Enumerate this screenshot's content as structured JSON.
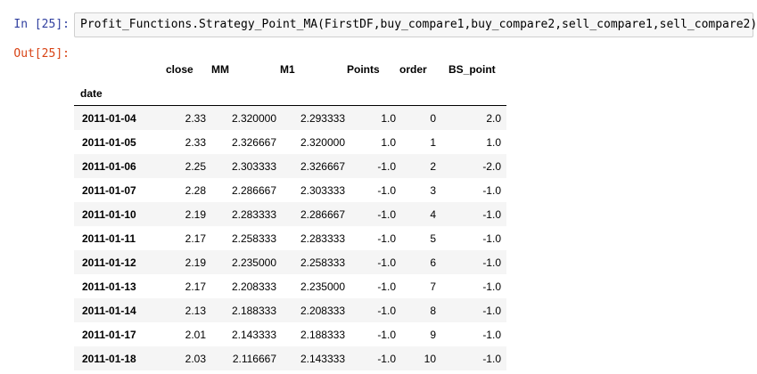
{
  "notebook": {
    "in_prompt": "In [25]:",
    "out_prompt": "Out[25]:",
    "code": "Profit_Functions.Strategy_Point_MA(FirstDF,buy_compare1,buy_compare2,sell_compare1,sell_compare2)"
  },
  "table": {
    "columns": [
      "close",
      "MM",
      "M1",
      "Points",
      "order",
      "BS_point"
    ],
    "index_name": "date",
    "rows": [
      {
        "date": "2011-01-04",
        "close": "2.33",
        "MM": "2.320000",
        "M1": "2.293333",
        "Points": "1.0",
        "order": "0",
        "BS_point": "2.0"
      },
      {
        "date": "2011-01-05",
        "close": "2.33",
        "MM": "2.326667",
        "M1": "2.320000",
        "Points": "1.0",
        "order": "1",
        "BS_point": "1.0"
      },
      {
        "date": "2011-01-06",
        "close": "2.25",
        "MM": "2.303333",
        "M1": "2.326667",
        "Points": "-1.0",
        "order": "2",
        "BS_point": "-2.0"
      },
      {
        "date": "2011-01-07",
        "close": "2.28",
        "MM": "2.286667",
        "M1": "2.303333",
        "Points": "-1.0",
        "order": "3",
        "BS_point": "-1.0"
      },
      {
        "date": "2011-01-10",
        "close": "2.19",
        "MM": "2.283333",
        "M1": "2.286667",
        "Points": "-1.0",
        "order": "4",
        "BS_point": "-1.0"
      },
      {
        "date": "2011-01-11",
        "close": "2.17",
        "MM": "2.258333",
        "M1": "2.283333",
        "Points": "-1.0",
        "order": "5",
        "BS_point": "-1.0"
      },
      {
        "date": "2011-01-12",
        "close": "2.19",
        "MM": "2.235000",
        "M1": "2.258333",
        "Points": "-1.0",
        "order": "6",
        "BS_point": "-1.0"
      },
      {
        "date": "2011-01-13",
        "close": "2.17",
        "MM": "2.208333",
        "M1": "2.235000",
        "Points": "-1.0",
        "order": "7",
        "BS_point": "-1.0"
      },
      {
        "date": "2011-01-14",
        "close": "2.13",
        "MM": "2.188333",
        "M1": "2.208333",
        "Points": "-1.0",
        "order": "8",
        "BS_point": "-1.0"
      },
      {
        "date": "2011-01-17",
        "close": "2.01",
        "MM": "2.143333",
        "M1": "2.188333",
        "Points": "-1.0",
        "order": "9",
        "BS_point": "-1.0"
      },
      {
        "date": "2011-01-18",
        "close": "2.03",
        "MM": "2.116667",
        "M1": "2.143333",
        "Points": "-1.0",
        "order": "10",
        "BS_point": "-1.0"
      }
    ]
  }
}
